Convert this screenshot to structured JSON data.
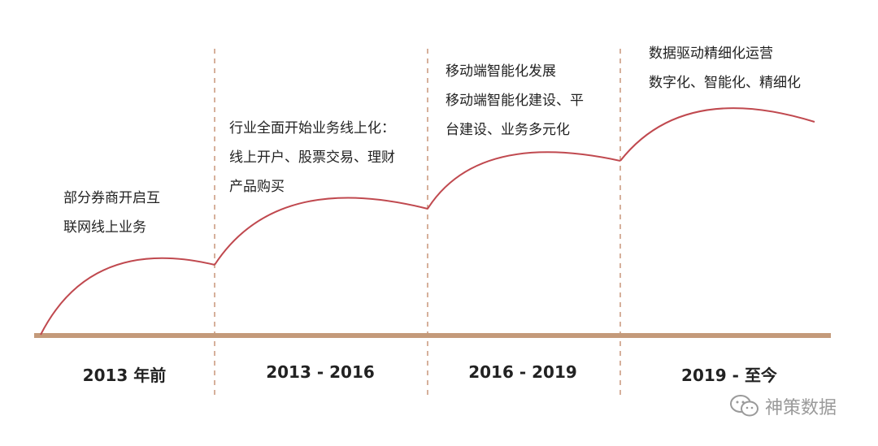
{
  "colors": {
    "axis": "#c49a7a",
    "curve": "#c0494f",
    "divider": "#c9967a",
    "text": "#222222"
  },
  "stages": [
    {
      "period": "2013 年前",
      "lines": [
        "部分券商开启互",
        "联网线上业务"
      ]
    },
    {
      "period": "2013 - 2016",
      "lines": [
        "行业全面开始业务线上化：",
        "线上开户、股票交易、理财",
        "产品购买"
      ]
    },
    {
      "period": "2016 - 2019",
      "lines": [
        "移动端智能化发展",
        "移动端智能化建设、平",
        "台建设、业务多元化"
      ]
    },
    {
      "period": "2019 - 至今",
      "lines": [
        "数据驱动精细化运营",
        "数字化、智能化、精细化"
      ]
    }
  ],
  "watermark": {
    "icon": "wechat-icon",
    "text": "神策数据"
  }
}
